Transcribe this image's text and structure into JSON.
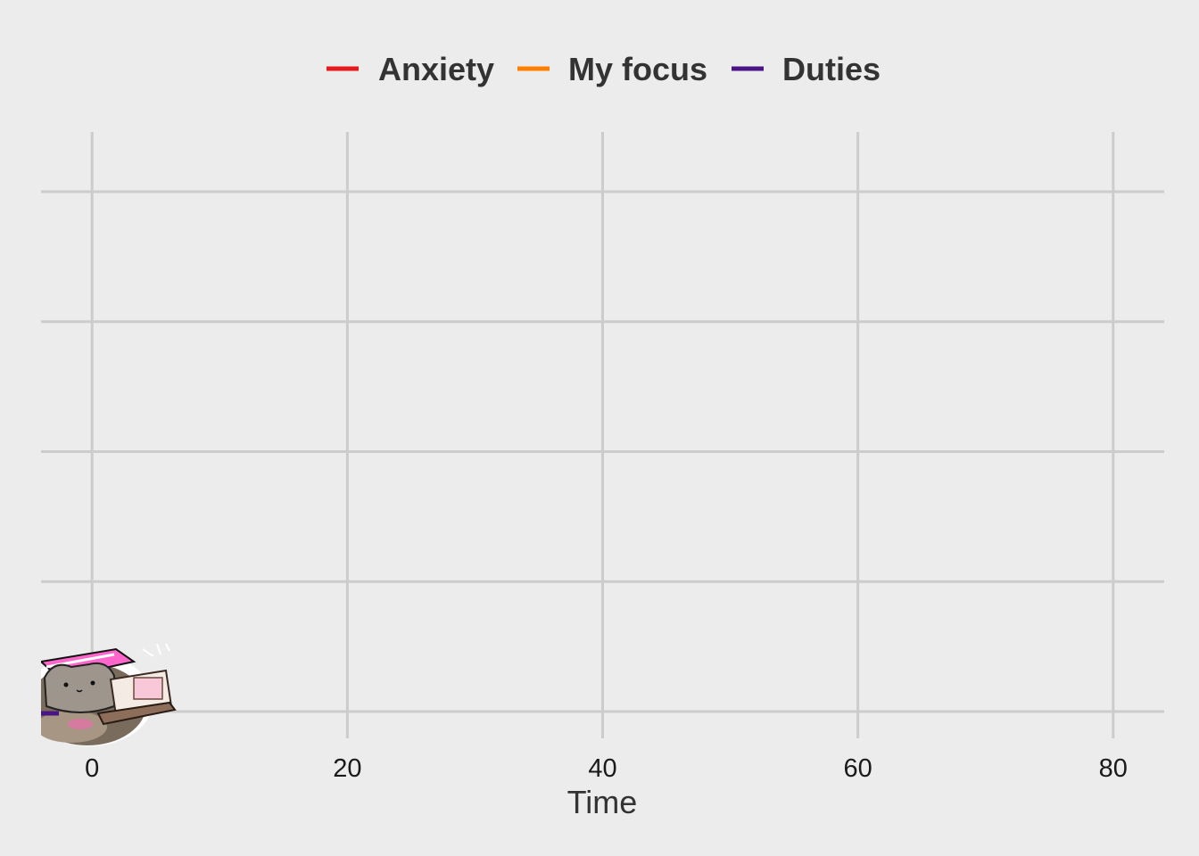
{
  "chart_data": {
    "type": "line",
    "title": "",
    "xlabel": "Time",
    "ylabel": "",
    "xlim": [
      -4,
      84
    ],
    "xticks": [
      "0",
      "20",
      "40",
      "60",
      "80"
    ],
    "xtick_values": [
      0,
      20,
      40,
      60,
      80
    ],
    "y_gridlines": 5,
    "y_tick_labels_shown": false,
    "grid": true,
    "legend_position": "top",
    "series": [
      {
        "name": "Anxiety",
        "color": "#e41a1c",
        "values": []
      },
      {
        "name": "My focus",
        "color": "#ff7f00",
        "values": []
      },
      {
        "name": "Duties",
        "color": "#4a1486",
        "values": []
      }
    ],
    "annotations": [
      {
        "kind": "image",
        "icon": "cat-with-laptop-sticker",
        "x": 0
      }
    ]
  }
}
